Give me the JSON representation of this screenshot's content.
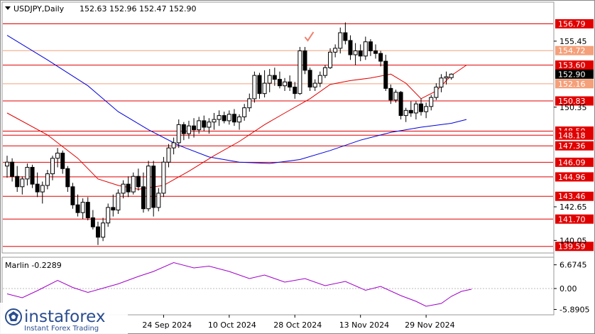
{
  "header": {
    "symbol_timeframe": "USDJPY,Daily",
    "ohlc": "152.63 152.96 152.47 152.90"
  },
  "logo": {
    "brand": "instaforex",
    "tagline": "Instant Forex Trading"
  },
  "colors": {
    "level": "#e00000",
    "level_light": "#f4a07a",
    "ma_fast": "#e00000",
    "ma_slow": "#0000dd",
    "oscillator": "#a000c8",
    "candle": "#000000",
    "check": "#f08070"
  },
  "chart_data": [
    {
      "type": "candlestick",
      "ylim": [
        139.3,
        158.3
      ],
      "price_ticks": [
        "155.45",
        "150.35",
        "142.65",
        "140.05"
      ],
      "date_labels": [
        {
          "index": 31,
          "label": "24 Sep 2024"
        },
        {
          "index": 44,
          "label": "10 Oct 2024"
        },
        {
          "index": 57,
          "label": "28 Oct 2024"
        },
        {
          "index": 70,
          "label": "13 Nov 2024"
        },
        {
          "index": 83,
          "label": "29 Nov 2024"
        }
      ],
      "levels": [
        {
          "price": 156.79,
          "label": "156.79",
          "style": "dark"
        },
        {
          "price": 154.72,
          "label": "154.72",
          "style": "light"
        },
        {
          "price": 153.6,
          "label": "153.60",
          "style": "dark"
        },
        {
          "price": 152.16,
          "label": "152.16",
          "style": "light"
        },
        {
          "price": 150.83,
          "label": "150.83",
          "style": "dark"
        },
        {
          "price": 148.5,
          "label": "148.50",
          "style": "dark"
        },
        {
          "price": 148.18,
          "label": "148.18",
          "style": "dark"
        },
        {
          "price": 147.36,
          "label": "147.36",
          "style": "dark"
        },
        {
          "price": 146.09,
          "label": "146.09",
          "style": "dark"
        },
        {
          "price": 144.96,
          "label": "144.96",
          "style": "dark"
        },
        {
          "price": 143.46,
          "label": "143.46",
          "style": "dark"
        },
        {
          "price": 141.7,
          "label": "141.70",
          "style": "dark"
        },
        {
          "price": 139.59,
          "label": "139.59",
          "style": "dark"
        }
      ],
      "current": {
        "price": 152.9,
        "label": "152.90"
      },
      "ohlc": [
        [
          145.8,
          146.6,
          144.9,
          146.1
        ],
        [
          146.1,
          146.4,
          144.6,
          145.0
        ],
        [
          145.0,
          145.8,
          143.8,
          144.2
        ],
        [
          144.2,
          145.0,
          143.6,
          144.8
        ],
        [
          144.8,
          146.0,
          144.3,
          145.7
        ],
        [
          145.7,
          145.9,
          144.1,
          144.4
        ],
        [
          144.4,
          145.3,
          143.4,
          143.8
        ],
        [
          143.8,
          144.6,
          142.9,
          144.3
        ],
        [
          144.3,
          145.5,
          144.0,
          145.2
        ],
        [
          145.2,
          146.6,
          144.7,
          146.4
        ],
        [
          146.4,
          147.2,
          145.7,
          146.8
        ],
        [
          146.8,
          147.0,
          145.2,
          145.6
        ],
        [
          145.6,
          145.8,
          143.8,
          144.2
        ],
        [
          144.2,
          144.5,
          142.5,
          142.8
        ],
        [
          142.8,
          143.6,
          141.9,
          142.2
        ],
        [
          142.2,
          143.3,
          141.7,
          143.0
        ],
        [
          143.0,
          143.4,
          141.6,
          141.8
        ],
        [
          141.8,
          142.4,
          140.9,
          141.1
        ],
        [
          141.1,
          141.5,
          139.7,
          140.3
        ],
        [
          140.3,
          141.8,
          140.0,
          141.4
        ],
        [
          141.4,
          142.9,
          141.1,
          142.6
        ],
        [
          142.6,
          143.6,
          141.9,
          142.4
        ],
        [
          142.4,
          144.0,
          142.1,
          143.7
        ],
        [
          143.7,
          144.7,
          143.3,
          144.4
        ],
        [
          144.4,
          145.0,
          143.4,
          143.8
        ],
        [
          143.8,
          145.3,
          143.6,
          145.0
        ],
        [
          145.0,
          145.6,
          143.9,
          144.2
        ],
        [
          144.2,
          145.3,
          142.2,
          142.5
        ],
        [
          142.5,
          146.2,
          142.3,
          145.8
        ],
        [
          145.8,
          146.2,
          141.9,
          142.6
        ],
        [
          142.6,
          144.1,
          142.3,
          143.7
        ],
        [
          143.7,
          146.5,
          143.4,
          146.1
        ],
        [
          146.1,
          147.5,
          145.7,
          147.2
        ],
        [
          147.2,
          148.0,
          146.7,
          147.6
        ],
        [
          147.6,
          149.4,
          147.2,
          149.0
        ],
        [
          149.0,
          149.2,
          147.8,
          148.3
        ],
        [
          148.3,
          149.3,
          147.9,
          148.9
        ],
        [
          148.9,
          149.5,
          148.0,
          148.6
        ],
        [
          148.6,
          149.6,
          148.3,
          149.3
        ],
        [
          149.3,
          149.7,
          148.5,
          148.8
        ],
        [
          148.8,
          149.5,
          148.3,
          149.2
        ],
        [
          149.2,
          149.9,
          148.6,
          149.4
        ],
        [
          149.4,
          150.1,
          148.9,
          149.7
        ],
        [
          149.7,
          150.0,
          149.1,
          149.3
        ],
        [
          149.3,
          150.1,
          149.0,
          149.8
        ],
        [
          149.8,
          150.2,
          148.9,
          149.2
        ],
        [
          149.2,
          149.8,
          148.6,
          149.6
        ],
        [
          149.6,
          150.6,
          149.3,
          150.3
        ],
        [
          150.3,
          151.4,
          150.0,
          151.0
        ],
        [
          151.0,
          153.1,
          150.7,
          152.8
        ],
        [
          152.8,
          153.0,
          151.0,
          151.4
        ],
        [
          151.4,
          153.2,
          151.1,
          152.2
        ],
        [
          152.2,
          153.3,
          151.5,
          152.8
        ],
        [
          152.8,
          153.4,
          152.0,
          152.5
        ],
        [
          152.5,
          153.1,
          151.8,
          152.0
        ],
        [
          152.0,
          152.6,
          151.6,
          152.3
        ],
        [
          152.3,
          152.8,
          151.6,
          151.9
        ],
        [
          151.9,
          152.3,
          151.0,
          151.4
        ],
        [
          151.4,
          155.0,
          151.3,
          154.7
        ],
        [
          154.7,
          155.0,
          152.9,
          153.2
        ],
        [
          153.2,
          153.4,
          151.6,
          151.9
        ],
        [
          151.9,
          152.5,
          151.6,
          152.2
        ],
        [
          152.2,
          153.1,
          151.9,
          152.8
        ],
        [
          152.8,
          153.6,
          152.6,
          153.4
        ],
        [
          153.4,
          154.9,
          153.3,
          154.6
        ],
        [
          154.6,
          155.2,
          154.2,
          154.9
        ],
        [
          154.9,
          156.5,
          154.5,
          156.1
        ],
        [
          156.1,
          156.9,
          155.2,
          155.5
        ],
        [
          155.5,
          155.9,
          154.0,
          154.4
        ],
        [
          154.4,
          155.3,
          153.6,
          154.7
        ],
        [
          154.7,
          155.2,
          153.9,
          154.3
        ],
        [
          154.3,
          155.8,
          154.0,
          155.4
        ],
        [
          155.4,
          155.6,
          154.3,
          154.7
        ],
        [
          154.7,
          155.2,
          154.1,
          154.5
        ],
        [
          154.5,
          154.7,
          153.5,
          153.9
        ],
        [
          153.9,
          154.4,
          151.6,
          151.8
        ],
        [
          151.8,
          152.1,
          150.6,
          150.9
        ],
        [
          150.9,
          151.7,
          150.7,
          151.5
        ],
        [
          151.5,
          151.6,
          149.4,
          149.7
        ],
        [
          149.7,
          150.3,
          149.2,
          150.1
        ],
        [
          150.1,
          150.8,
          149.6,
          149.9
        ],
        [
          149.9,
          150.8,
          149.4,
          150.6
        ],
        [
          150.6,
          151.0,
          149.7,
          150.0
        ],
        [
          150.0,
          150.7,
          149.5,
          150.4
        ],
        [
          150.4,
          151.3,
          150.1,
          151.1
        ],
        [
          151.1,
          152.2,
          150.9,
          151.9
        ],
        [
          151.9,
          152.9,
          151.5,
          152.6
        ],
        [
          152.6,
          153.1,
          152.1,
          152.7
        ],
        [
          152.63,
          152.96,
          152.47,
          152.9
        ]
      ],
      "ma_fast": [
        [
          0,
          149.9
        ],
        [
          8,
          148.2
        ],
        [
          14,
          146.4
        ],
        [
          18,
          144.8
        ],
        [
          22,
          144.3
        ],
        [
          26,
          144.0
        ],
        [
          31,
          144.3
        ],
        [
          36,
          145.4
        ],
        [
          41,
          146.6
        ],
        [
          46,
          147.7
        ],
        [
          51,
          149.0
        ],
        [
          55,
          149.9
        ],
        [
          60,
          151.0
        ],
        [
          64,
          152.1
        ],
        [
          68,
          152.4
        ],
        [
          72,
          152.6
        ],
        [
          76,
          152.9
        ],
        [
          79,
          152.2
        ],
        [
          82,
          151.0
        ],
        [
          85,
          151.6
        ],
        [
          88,
          152.8
        ],
        [
          91,
          153.6
        ]
      ],
      "ma_slow": [
        [
          0,
          155.9
        ],
        [
          8,
          154.0
        ],
        [
          16,
          152.0
        ],
        [
          22,
          150.0
        ],
        [
          28,
          148.6
        ],
        [
          34,
          147.4
        ],
        [
          40,
          146.5
        ],
        [
          46,
          146.1
        ],
        [
          52,
          146.0
        ],
        [
          58,
          146.3
        ],
        [
          64,
          147.0
        ],
        [
          70,
          147.8
        ],
        [
          76,
          148.4
        ],
        [
          82,
          148.8
        ],
        [
          88,
          149.1
        ],
        [
          91,
          149.4
        ]
      ]
    },
    {
      "type": "line",
      "title": "Marlin -0.2289",
      "ylim": [
        -6.8,
        8.0
      ],
      "ticks": [
        "6.6745",
        "0.00",
        "-5.8905"
      ],
      "series": [
        {
          "values": [
            [
              0,
              -1.5
            ],
            [
              3,
              -2.6
            ],
            [
              6,
              -0.6
            ],
            [
              10,
              2.3
            ],
            [
              13,
              0.3
            ],
            [
              16,
              -1.1
            ],
            [
              19,
              0.1
            ],
            [
              22,
              1.3
            ],
            [
              26,
              3.4
            ],
            [
              29,
              4.8
            ],
            [
              33,
              7.3
            ],
            [
              37,
              5.8
            ],
            [
              40,
              6.3
            ],
            [
              44,
              4.8
            ],
            [
              48,
              2.8
            ],
            [
              51,
              3.8
            ],
            [
              55,
              1.8
            ],
            [
              59,
              2.8
            ],
            [
              63,
              0.8
            ],
            [
              67,
              2.0
            ],
            [
              71,
              -0.5
            ],
            [
              74,
              0.6
            ],
            [
              78,
              -2.0
            ],
            [
              81,
              -3.6
            ],
            [
              83,
              -5.0
            ],
            [
              86,
              -4.2
            ],
            [
              88,
              -2.2
            ],
            [
              90,
              -0.8
            ],
            [
              92,
              -0.2
            ]
          ]
        }
      ]
    }
  ]
}
